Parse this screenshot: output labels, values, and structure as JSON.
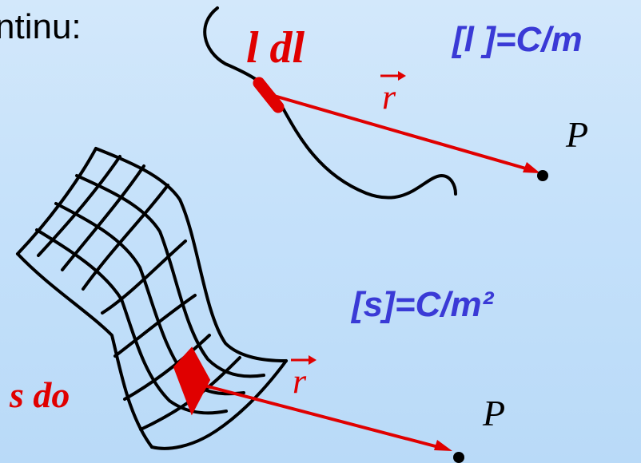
{
  "texts": {
    "heading": "ntinu:",
    "line_unit": "[l ]=C/m",
    "surface_unit": "[s]=C/m²",
    "line_element": "l dl",
    "surface_element": "s do",
    "point_line": "P",
    "point_surface": "P",
    "vector_line": "r",
    "vector_surface": "r"
  },
  "colors": {
    "background": "#c5e1fa",
    "accent_red": "#e00000",
    "unit_blue": "#3a3ad6",
    "ink": "#000000"
  }
}
